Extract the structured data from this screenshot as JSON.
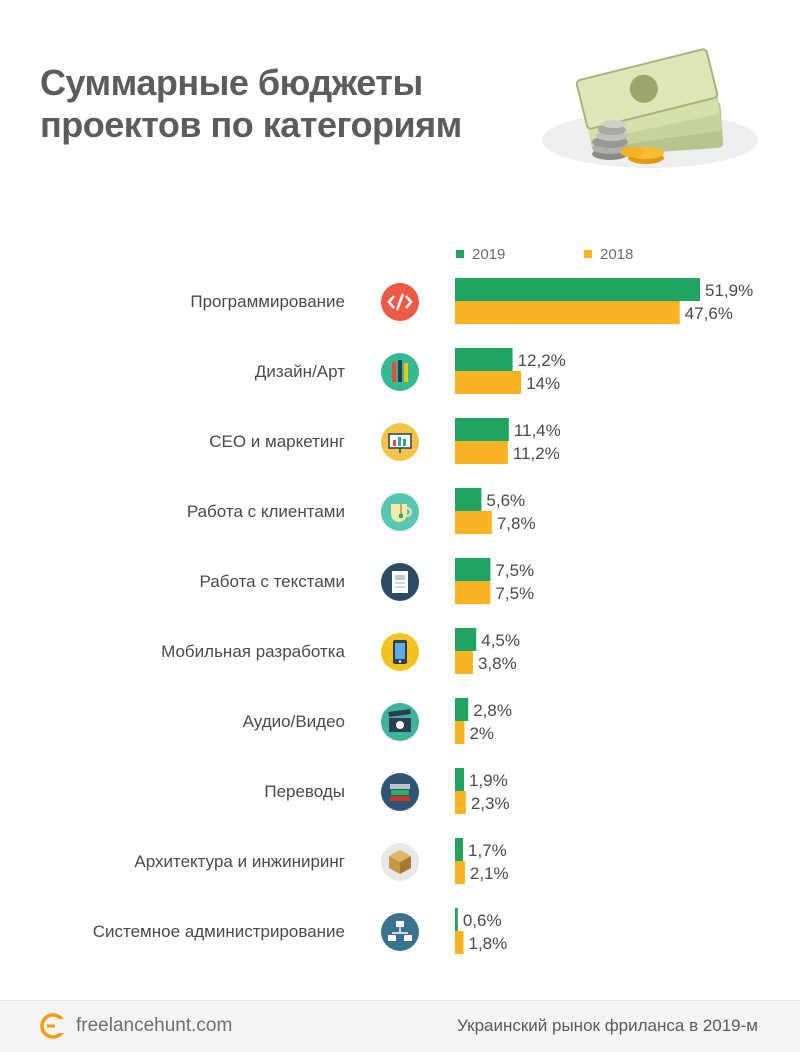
{
  "title_line1": "Суммарные бюджеты",
  "title_line2": "проектов по категориям",
  "footer": {
    "logo": "freelancehunt.com",
    "caption": "Украинский рынок фриланса в 2019-м"
  },
  "colors": {
    "green": "#20a45f",
    "orange": "#fbb324"
  },
  "chart_data": {
    "type": "bar",
    "orientation": "horizontal",
    "categories": [
      "Программирование",
      "Дизайн/Арт",
      "СЕО и маркетинг",
      "Работа с клиентами",
      "Работа с текстами",
      "Мобильная разработка",
      "Аудио/Видео",
      "Переводы",
      "Архитектура и инжиниринг",
      "Системное администрирование"
    ],
    "icons": [
      "code-icon",
      "pencils-icon",
      "chart-board-icon",
      "cup-icon",
      "document-icon",
      "smartphone-icon",
      "clapperboard-icon",
      "books-icon",
      "box-icon",
      "network-icon"
    ],
    "icon_colors": [
      "#ef5a46",
      "#35b992",
      "#f2c44a",
      "#58c6b0",
      "#2c4a63",
      "#f4c21f",
      "#3fb39b",
      "#2f5574",
      "#e8e8e8",
      "#3a7391"
    ],
    "series": [
      {
        "name": "2019",
        "color": "#20a45f",
        "values": [
          51.9,
          12.2,
          11.4,
          5.6,
          7.5,
          4.5,
          2.8,
          1.9,
          1.7,
          0.6
        ],
        "labels": [
          "51,9%",
          "12,2%",
          "11,4%",
          "5,6%",
          "7,5%",
          "4,5%",
          "2,8%",
          "1,9%",
          "1,7%",
          "0,6%"
        ]
      },
      {
        "name": "2018",
        "color": "#fbb324",
        "values": [
          47.6,
          14,
          11.2,
          7.8,
          7.5,
          3.8,
          2,
          2.3,
          2.1,
          1.8
        ],
        "labels": [
          "47,6%",
          "14%",
          "11,2%",
          "7,8%",
          "7,5%",
          "3,8%",
          "2%",
          "2,3%",
          "2,1%",
          "1,8%"
        ]
      }
    ],
    "xlim": [
      0,
      51.9
    ],
    "grid": false,
    "legend_position": "top"
  }
}
